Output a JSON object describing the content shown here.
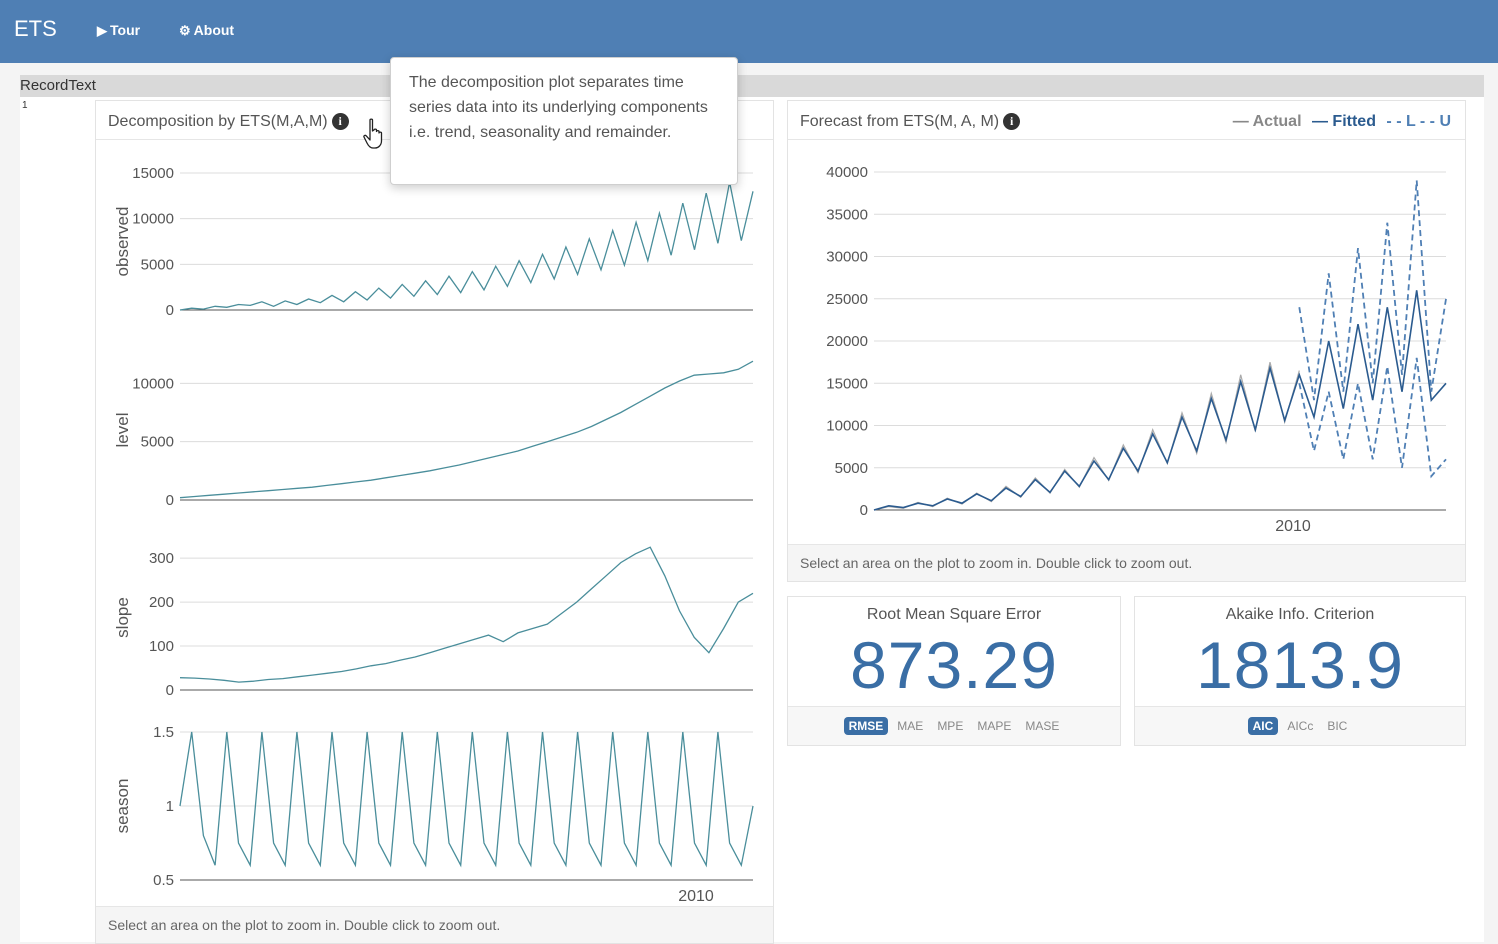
{
  "navbar": {
    "brand": "ETS",
    "tour_label": "Tour",
    "about_label": "About"
  },
  "record_bar": {
    "text": "RecordText",
    "row_number": "1"
  },
  "tooltip": {
    "text": "The decomposition plot separates time series data into its underlying components i.e. trend, seasonality and remainder."
  },
  "left_panel": {
    "title": "Decomposition by ETS(M,A,M)",
    "footer": "Select an area on the plot to zoom in. Double click to zoom out."
  },
  "right_panel": {
    "title": "Forecast from ETS(M, A, M)",
    "legend": {
      "actual": "— Actual",
      "fitted": "— Fitted",
      "bounds": "- - L - - U"
    },
    "footer": "Select an area on the plot to zoom in. Double click to zoom out."
  },
  "rmse_card": {
    "title": "Root Mean Square Error",
    "value": "873.29",
    "options": [
      "RMSE",
      "MAE",
      "MPE",
      "MAPE",
      "MASE"
    ],
    "selected": "RMSE"
  },
  "aic_card": {
    "title": "Akaike Info. Criterion",
    "value": "1813.9",
    "options": [
      "AIC",
      "AICc",
      "BIC"
    ],
    "selected": "AIC"
  },
  "colors": {
    "navbar": "#4f7fb4",
    "decomp_line": "#4a8e9b",
    "actual_line": "#aaaaaa",
    "fitted_line": "#2b5b8f",
    "bounds_line": "#4f7fb4",
    "metric_value": "#3a6ea5"
  },
  "chart_data": [
    {
      "type": "line",
      "title": "observed",
      "ylabel": "observed",
      "yticks": [
        "0",
        "5000",
        "10000",
        "15000"
      ],
      "ylim": [
        0,
        15000
      ],
      "xticks": [],
      "series": [
        {
          "name": "observed",
          "values": [
            0,
            200,
            100,
            400,
            300,
            600,
            500,
            900,
            400,
            1000,
            600,
            1200,
            800,
            1600,
            900,
            2000,
            1100,
            2400,
            1300,
            2800,
            1500,
            3200,
            1700,
            3700,
            1900,
            4200,
            2200,
            4800,
            2600,
            5400,
            3000,
            6100,
            3400,
            6900,
            3900,
            7800,
            4400,
            8700,
            4900,
            9600,
            5400,
            10600,
            6000,
            11700,
            6600,
            12800,
            7300,
            14000,
            7600,
            13000
          ]
        }
      ]
    },
    {
      "type": "line",
      "title": "level",
      "ylabel": "level",
      "yticks": [
        "0",
        "5000",
        "10000"
      ],
      "ylim": [
        0,
        12000
      ],
      "xticks": [],
      "series": [
        {
          "name": "level",
          "values": [
            200,
            300,
            400,
            500,
            600,
            700,
            800,
            900,
            1000,
            1100,
            1250,
            1400,
            1550,
            1700,
            1900,
            2100,
            2300,
            2500,
            2750,
            3000,
            3300,
            3600,
            3900,
            4200,
            4600,
            5000,
            5400,
            5800,
            6300,
            6900,
            7500,
            8200,
            8900,
            9600,
            10200,
            10700,
            10800,
            10900,
            11200,
            11900
          ]
        }
      ]
    },
    {
      "type": "line",
      "title": "slope",
      "ylabel": "slope",
      "yticks": [
        "0",
        "100",
        "200",
        "300"
      ],
      "ylim": [
        0,
        330
      ],
      "xticks": [],
      "series": [
        {
          "name": "slope",
          "values": [
            28,
            27,
            25,
            22,
            18,
            20,
            24,
            26,
            30,
            34,
            38,
            42,
            48,
            55,
            60,
            68,
            75,
            85,
            95,
            105,
            115,
            125,
            110,
            130,
            140,
            150,
            175,
            200,
            230,
            260,
            290,
            310,
            325,
            260,
            180,
            120,
            85,
            140,
            200,
            220
          ]
        }
      ]
    },
    {
      "type": "line",
      "title": "season",
      "ylabel": "season",
      "yticks": [
        "0.5",
        "1",
        "1.5"
      ],
      "ylim": [
        0.5,
        1.5
      ],
      "xticks": [
        "2010"
      ],
      "series": [
        {
          "name": "season",
          "values": [
            1.0,
            1.5,
            0.8,
            0.6,
            1.5,
            0.75,
            0.6,
            1.5,
            0.75,
            0.6,
            1.5,
            0.75,
            0.6,
            1.5,
            0.75,
            0.6,
            1.5,
            0.75,
            0.6,
            1.5,
            0.75,
            0.6,
            1.5,
            0.75,
            0.6,
            1.5,
            0.75,
            0.6,
            1.5,
            0.75,
            0.6,
            1.5,
            0.75,
            0.6,
            1.5,
            0.75,
            0.6,
            1.5,
            0.75,
            0.6,
            1.5,
            0.75,
            0.6,
            1.5,
            0.75,
            0.6,
            1.5,
            0.75,
            0.6,
            1.0
          ]
        }
      ]
    },
    {
      "type": "line",
      "title": "Forecast from ETS(M, A, M)",
      "yticks": [
        "0",
        "5000",
        "10000",
        "15000",
        "20000",
        "25000",
        "30000",
        "35000",
        "40000"
      ],
      "ylim": [
        0,
        40000
      ],
      "xticks": [
        "2010"
      ],
      "series": [
        {
          "name": "Actual",
          "values": [
            0,
            400,
            200,
            900,
            400,
            1400,
            700,
            2000,
            1000,
            2800,
            1500,
            3800,
            2000,
            4800,
            2700,
            6200,
            3500,
            7700,
            4400,
            9500,
            5500,
            11500,
            6700,
            13800,
            8000,
            16000,
            9300,
            17500,
            10400,
            16500
          ]
        },
        {
          "name": "Fitted",
          "values": [
            0,
            500,
            300,
            800,
            500,
            1300,
            800,
            1900,
            1100,
            2600,
            1600,
            3600,
            2100,
            4600,
            2800,
            5800,
            3600,
            7300,
            4600,
            9000,
            5600,
            11000,
            7000,
            13200,
            8300,
            15200,
            9500,
            16800,
            10600,
            16000,
            11000,
            20000,
            12000,
            22000,
            13000,
            24000,
            14000,
            26000,
            13000,
            15000
          ]
        },
        {
          "name": "L",
          "values": [
            null,
            null,
            null,
            null,
            null,
            null,
            null,
            null,
            null,
            null,
            null,
            null,
            null,
            null,
            null,
            null,
            null,
            null,
            null,
            null,
            null,
            null,
            null,
            null,
            null,
            null,
            null,
            null,
            null,
            15000,
            7000,
            14000,
            6000,
            15000,
            6000,
            17000,
            5000,
            18000,
            4000,
            6000
          ]
        },
        {
          "name": "U",
          "values": [
            null,
            null,
            null,
            null,
            null,
            null,
            null,
            null,
            null,
            null,
            null,
            null,
            null,
            null,
            null,
            null,
            null,
            null,
            null,
            null,
            null,
            null,
            null,
            null,
            null,
            null,
            null,
            null,
            null,
            24000,
            13000,
            28000,
            14000,
            31000,
            15000,
            34000,
            16000,
            39000,
            14000,
            25000
          ]
        }
      ]
    }
  ]
}
